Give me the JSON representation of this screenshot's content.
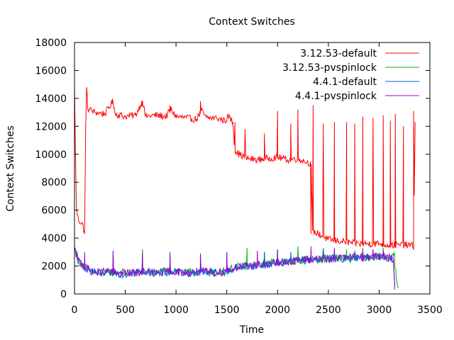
{
  "chart_data": {
    "type": "line",
    "title": "Context Switches",
    "xlabel": "Time",
    "ylabel": "Context Switches",
    "xlim": [
      0,
      3500
    ],
    "ylim": [
      0,
      18000
    ],
    "xticks": [
      0,
      500,
      1000,
      1500,
      2000,
      2500,
      3000,
      3500
    ],
    "yticks": [
      0,
      2000,
      4000,
      6000,
      8000,
      10000,
      12000,
      14000,
      16000,
      18000
    ],
    "grid": false,
    "legend_position": "top-right",
    "series": [
      {
        "name": "3.12.53-default",
        "color": "#ff0000",
        "base": [
          [
            0,
            14800
          ],
          [
            10,
            10000
          ],
          [
            20,
            6000
          ],
          [
            40,
            5300
          ],
          [
            80,
            5000
          ],
          [
            100,
            4300
          ],
          [
            110,
            12000
          ],
          [
            120,
            14800
          ],
          [
            130,
            13300
          ],
          [
            200,
            13000
          ],
          [
            300,
            12900
          ],
          [
            380,
            13800
          ],
          [
            400,
            12900
          ],
          [
            500,
            12700
          ],
          [
            600,
            12800
          ],
          [
            670,
            13800
          ],
          [
            700,
            12700
          ],
          [
            800,
            12800
          ],
          [
            900,
            12700
          ],
          [
            950,
            13200
          ],
          [
            1000,
            12700
          ],
          [
            1100,
            12600
          ],
          [
            1200,
            12500
          ],
          [
            1250,
            13100
          ],
          [
            1300,
            12600
          ],
          [
            1400,
            12600
          ],
          [
            1480,
            12400
          ],
          [
            1520,
            12700
          ],
          [
            1560,
            12300
          ],
          [
            1580,
            10300
          ],
          [
            1620,
            10000
          ],
          [
            1700,
            9700
          ],
          [
            1800,
            9600
          ],
          [
            1900,
            9700
          ],
          [
            2000,
            9800
          ],
          [
            2100,
            9600
          ],
          [
            2200,
            9700
          ],
          [
            2300,
            9400
          ],
          [
            2330,
            9400
          ],
          [
            2345,
            4500
          ],
          [
            2400,
            4300
          ],
          [
            2500,
            3900
          ],
          [
            2600,
            3800
          ],
          [
            2700,
            3700
          ],
          [
            2800,
            3600
          ],
          [
            2900,
            3600
          ],
          [
            3000,
            3600
          ],
          [
            3100,
            3500
          ],
          [
            3200,
            3500
          ],
          [
            3300,
            3500
          ],
          [
            3340,
            3400
          ],
          [
            3355,
            12300
          ]
        ],
        "spikes": [
          [
            100,
            4300
          ],
          [
            380,
            13800
          ],
          [
            670,
            13800
          ],
          [
            940,
            13500
          ],
          [
            1240,
            13800
          ],
          [
            1580,
            12300
          ],
          [
            1680,
            11800
          ],
          [
            1870,
            11500
          ],
          [
            2000,
            13100
          ],
          [
            2130,
            12200
          ],
          [
            2200,
            13200
          ],
          [
            2330,
            4300
          ],
          [
            2350,
            13500
          ],
          [
            2450,
            12200
          ],
          [
            2560,
            12300
          ],
          [
            2680,
            12300
          ],
          [
            2760,
            12200
          ],
          [
            2840,
            12700
          ],
          [
            2940,
            12600
          ],
          [
            3040,
            12800
          ],
          [
            3110,
            12400
          ],
          [
            3160,
            12900
          ],
          [
            3240,
            12000
          ],
          [
            3340,
            13100
          ]
        ],
        "noise": 250
      },
      {
        "name": "3.12.53-pvspinlock",
        "color": "#00b000",
        "base": [
          [
            0,
            3300
          ],
          [
            40,
            2400
          ],
          [
            100,
            1900
          ],
          [
            200,
            1500
          ],
          [
            300,
            1500
          ],
          [
            400,
            1600
          ],
          [
            500,
            1500
          ],
          [
            600,
            1500
          ],
          [
            700,
            1600
          ],
          [
            800,
            1500
          ],
          [
            900,
            1600
          ],
          [
            1000,
            1700
          ],
          [
            1100,
            1500
          ],
          [
            1200,
            1600
          ],
          [
            1300,
            1600
          ],
          [
            1400,
            1500
          ],
          [
            1500,
            1700
          ],
          [
            1600,
            1900
          ],
          [
            1700,
            2000
          ],
          [
            1800,
            2100
          ],
          [
            1900,
            2200
          ],
          [
            2000,
            2300
          ],
          [
            2100,
            2300
          ],
          [
            2200,
            2400
          ],
          [
            2300,
            2500
          ],
          [
            2400,
            2500
          ],
          [
            2500,
            2500
          ],
          [
            2600,
            2600
          ],
          [
            2700,
            2500
          ],
          [
            2800,
            2600
          ],
          [
            2900,
            2600
          ],
          [
            3000,
            2700
          ],
          [
            3100,
            2600
          ],
          [
            3150,
            2600
          ],
          [
            3170,
            1000
          ],
          [
            3190,
            400
          ]
        ],
        "spikes": [
          [
            380,
            3100
          ],
          [
            670,
            3200
          ],
          [
            940,
            2800
          ],
          [
            1240,
            2900
          ],
          [
            1700,
            3300
          ],
          [
            1870,
            3000
          ],
          [
            2000,
            3200
          ],
          [
            2200,
            3400
          ],
          [
            2450,
            3300
          ],
          [
            2680,
            3200
          ],
          [
            2840,
            3300
          ],
          [
            3040,
            3300
          ],
          [
            3150,
            3000
          ]
        ],
        "noise": 300
      },
      {
        "name": "4.4.1-default",
        "color": "#0060e0",
        "base": [
          [
            0,
            3100
          ],
          [
            40,
            2300
          ],
          [
            100,
            1900
          ],
          [
            200,
            1500
          ],
          [
            300,
            1500
          ],
          [
            400,
            1500
          ],
          [
            500,
            1400
          ],
          [
            600,
            1600
          ],
          [
            700,
            1600
          ],
          [
            800,
            1500
          ],
          [
            900,
            1500
          ],
          [
            1000,
            1600
          ],
          [
            1100,
            1500
          ],
          [
            1200,
            1500
          ],
          [
            1300,
            1600
          ],
          [
            1400,
            1500
          ],
          [
            1500,
            1600
          ],
          [
            1600,
            1900
          ],
          [
            1700,
            2000
          ],
          [
            1800,
            2000
          ],
          [
            1900,
            2100
          ],
          [
            2000,
            2200
          ],
          [
            2100,
            2300
          ],
          [
            2200,
            2400
          ],
          [
            2300,
            2400
          ],
          [
            2400,
            2500
          ],
          [
            2500,
            2500
          ],
          [
            2600,
            2500
          ],
          [
            2700,
            2600
          ],
          [
            2800,
            2600
          ],
          [
            2900,
            2600
          ],
          [
            3000,
            2600
          ],
          [
            3100,
            2600
          ],
          [
            3140,
            2500
          ],
          [
            3150,
            1100
          ],
          [
            3155,
            500
          ]
        ],
        "spikes": [
          [
            380,
            2800
          ],
          [
            670,
            2900
          ],
          [
            940,
            2800
          ],
          [
            1240,
            2700
          ],
          [
            1500,
            2900
          ],
          [
            1870,
            3000
          ],
          [
            2130,
            3000
          ],
          [
            2450,
            3200
          ],
          [
            2760,
            3100
          ],
          [
            3040,
            3000
          ]
        ],
        "noise": 280
      },
      {
        "name": "4.4.1-pvspinlock",
        "color": "#a000e0",
        "base": [
          [
            0,
            3200
          ],
          [
            40,
            2400
          ],
          [
            100,
            1900
          ],
          [
            200,
            1500
          ],
          [
            300,
            1600
          ],
          [
            400,
            1500
          ],
          [
            500,
            1500
          ],
          [
            600,
            1500
          ],
          [
            700,
            1600
          ],
          [
            800,
            1500
          ],
          [
            900,
            1600
          ],
          [
            1000,
            1600
          ],
          [
            1100,
            1500
          ],
          [
            1200,
            1600
          ],
          [
            1300,
            1600
          ],
          [
            1400,
            1500
          ],
          [
            1500,
            1700
          ],
          [
            1600,
            1900
          ],
          [
            1700,
            2000
          ],
          [
            1800,
            2100
          ],
          [
            1900,
            2100
          ],
          [
            2000,
            2200
          ],
          [
            2100,
            2300
          ],
          [
            2200,
            2400
          ],
          [
            2300,
            2500
          ],
          [
            2400,
            2500
          ],
          [
            2500,
            2500
          ],
          [
            2600,
            2600
          ],
          [
            2700,
            2600
          ],
          [
            2800,
            2700
          ],
          [
            2900,
            2600
          ],
          [
            3000,
            2700
          ],
          [
            3100,
            2600
          ],
          [
            3140,
            2500
          ],
          [
            3150,
            1000
          ],
          [
            3155,
            300
          ]
        ],
        "spikes": [
          [
            100,
            3000
          ],
          [
            380,
            3100
          ],
          [
            670,
            3000
          ],
          [
            940,
            3000
          ],
          [
            1240,
            2900
          ],
          [
            1500,
            3000
          ],
          [
            1800,
            3100
          ],
          [
            2000,
            3200
          ],
          [
            2330,
            3400
          ],
          [
            2560,
            3300
          ],
          [
            2840,
            3200
          ],
          [
            2940,
            3200
          ],
          [
            3040,
            3100
          ]
        ],
        "noise": 280
      }
    ]
  }
}
